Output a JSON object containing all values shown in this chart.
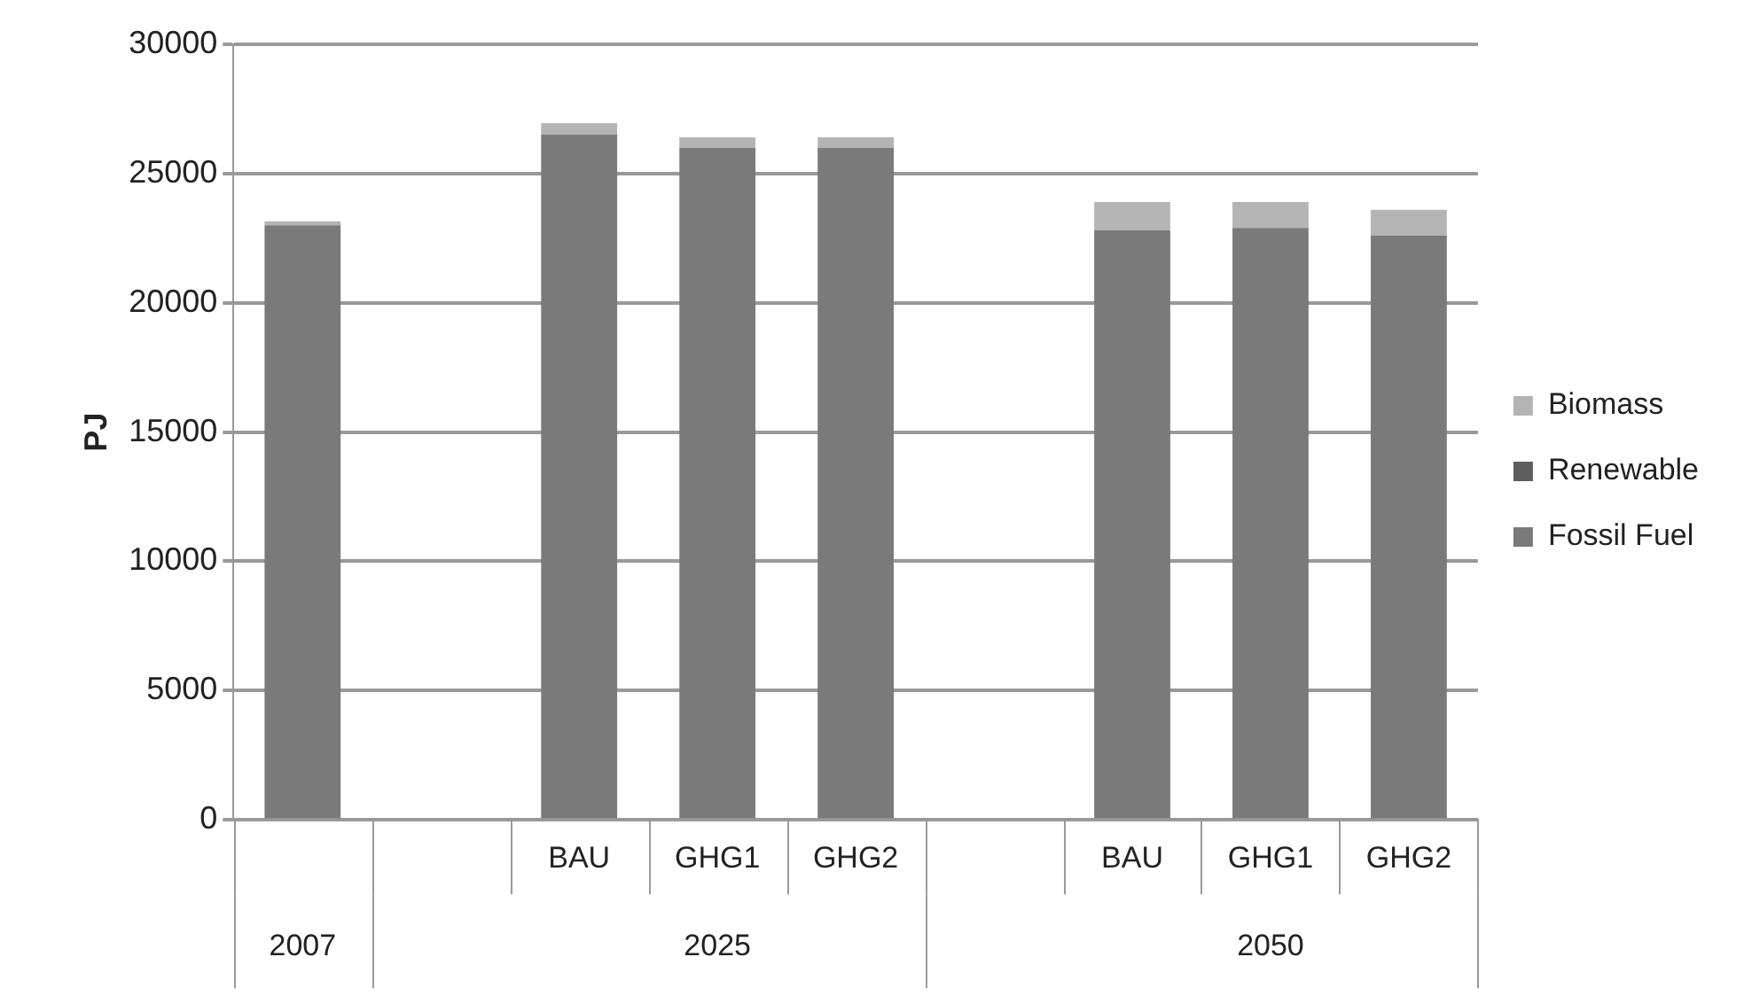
{
  "chart_data": {
    "type": "bar",
    "stacked": true,
    "ylabel": "PJ",
    "categories": [
      null,
      null,
      "BAU",
      "GHG1",
      "GHG2",
      null,
      "BAU",
      "GHG1",
      "GHG2"
    ],
    "series": [
      {
        "name": "Fossil Fuel",
        "color": "#7a7a7a",
        "values": [
          23000,
          null,
          26500,
          26000,
          26000,
          null,
          22800,
          22900,
          22600
        ]
      },
      {
        "name": "Renewable",
        "color": "#5e5e5e",
        "values": [
          0,
          null,
          0,
          0,
          0,
          null,
          0,
          0,
          0
        ]
      },
      {
        "name": "Biomass",
        "color": "#b4b4b4",
        "values": [
          150,
          null,
          450,
          400,
          400,
          null,
          1100,
          1000,
          1000
        ]
      }
    ],
    "ylim": [
      0,
      30000
    ],
    "yticks": [
      0,
      5000,
      10000,
      15000,
      20000,
      25000,
      30000
    ],
    "grid": "y",
    "legend": "right",
    "annotations": [
      "2007",
      "2025",
      "2050"
    ]
  }
}
